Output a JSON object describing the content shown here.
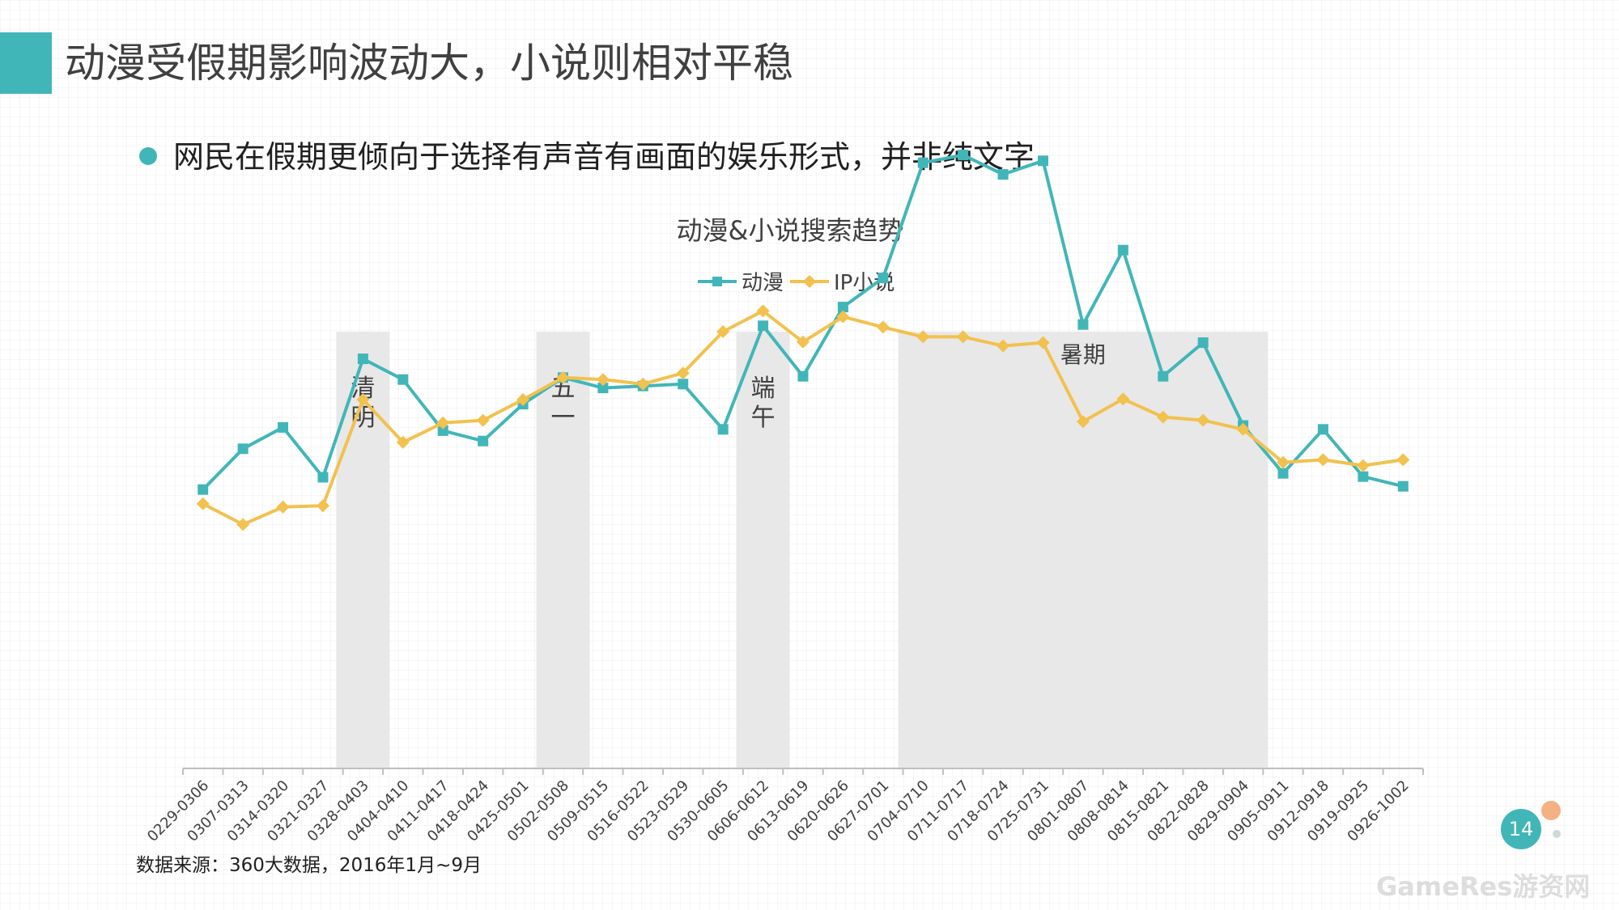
{
  "page": {
    "title": "动漫受假期影响波动大，小说则相对平稳",
    "bullet": "网民在假期更倾向于选择有声音有画面的娱乐形式，并非纯文字",
    "source": "数据来源：360大数据，2016年1月~9月",
    "page_number": "14",
    "watermark": "GameRes游资网"
  },
  "colors": {
    "accent": "#41b6b8",
    "anime": "#41b6b8",
    "novel": "#f2c14e",
    "holiday_band": "#e8e8e8"
  },
  "chart_data": {
    "type": "line",
    "title": "动漫&小说搜索趋势",
    "xlabel": "",
    "ylabel": "",
    "legend_position": "top",
    "grid": false,
    "categories": [
      "0229-0306",
      "0307-0313",
      "0314-0320",
      "0321-0327",
      "0328-0403",
      "0404-0410",
      "0411-0417",
      "0418-0424",
      "0425-0501",
      "0502-0508",
      "0509-0515",
      "0516-0522",
      "0523-0529",
      "0530-0605",
      "0606-0612",
      "0613-0619",
      "0620-0626",
      "0627-0701",
      "0704-0710",
      "0711-0717",
      "0718-0724",
      "0725-0731",
      "0801-0807",
      "0808-0814",
      "0815-0821",
      "0822-0828",
      "0829-0904",
      "0905-0911",
      "0912-0918",
      "0919-0925",
      "0926-1002"
    ],
    "series": [
      {
        "name": "动漫",
        "color": "#41b6b8",
        "marker": "square",
        "values": [
          43.1,
          49.4,
          52.7,
          45.0,
          63.3,
          60.1,
          52.2,
          50.6,
          56.3,
          60.4,
          58.8,
          59.1,
          59.4,
          52.4,
          68.4,
          60.6,
          71.3,
          75.8,
          93.6,
          94.8,
          91.8,
          93.9,
          68.6,
          80.1,
          60.6,
          65.8,
          53.0,
          45.6,
          52.4,
          45.1,
          43.6
        ]
      },
      {
        "name": "IP小说",
        "color": "#f2c14e",
        "marker": "diamond",
        "values": [
          40.9,
          37.7,
          40.4,
          40.6,
          57.0,
          50.4,
          53.4,
          53.8,
          57.0,
          60.4,
          60.1,
          59.4,
          61.1,
          67.5,
          70.7,
          65.9,
          69.8,
          68.2,
          66.7,
          66.7,
          65.3,
          65.8,
          53.6,
          57.1,
          54.3,
          53.8,
          52.4,
          47.3,
          47.7,
          46.8,
          47.7
        ]
      }
    ],
    "holidays": [
      {
        "label": "清明",
        "from": "0328-0403",
        "to": "0328-0403"
      },
      {
        "label": "五一",
        "from": "0502-0508",
        "to": "0502-0508"
      },
      {
        "label": "端午",
        "from": "0606-0612",
        "to": "0606-0612"
      },
      {
        "label": "暑期",
        "from": "0704-0710",
        "to": "0829-0904"
      }
    ],
    "ylim": [
      0,
      110
    ]
  }
}
